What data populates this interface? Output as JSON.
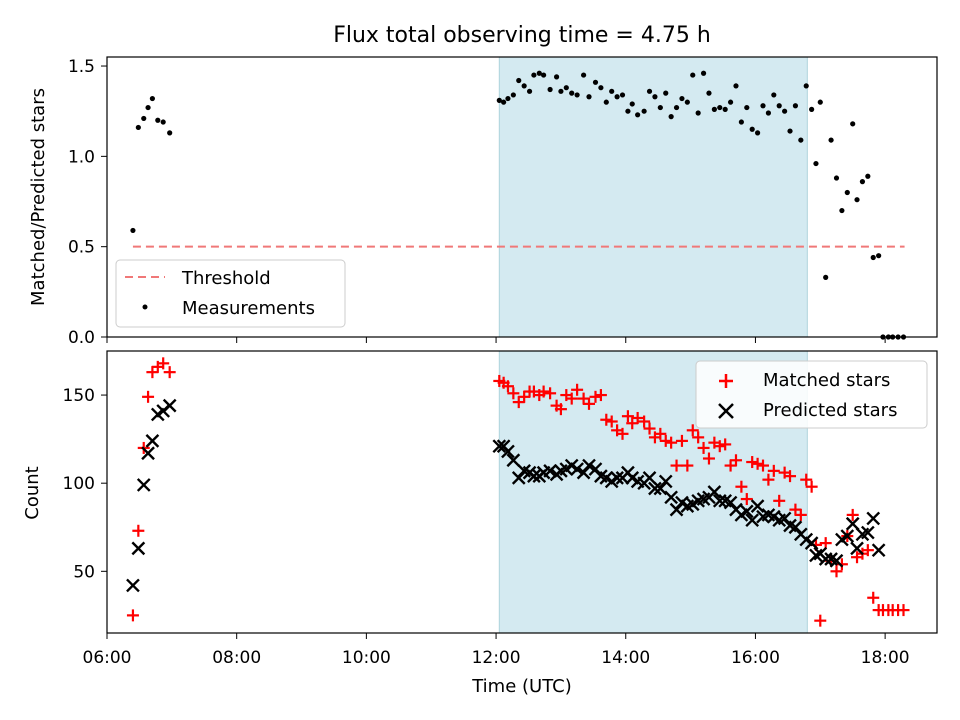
{
  "chart_data": [
    {
      "type": "scatter",
      "title": "Flux total observing time = 4.75 h",
      "ylabel": "Matched/Predicted stars",
      "xlabel": "",
      "xlim": [
        "06:00",
        "18:48"
      ],
      "ylim": [
        0,
        1.55
      ],
      "yticks": [
        "0.0",
        "0.5",
        "1.0",
        "1.5"
      ],
      "shaded_region": {
        "start": "12:03",
        "end": "16:48",
        "color": "#d4eaf1"
      },
      "threshold": {
        "name": "Threshold",
        "value": 0.5,
        "x_start": "06:24",
        "x_end": "18:18",
        "color": "#f07878"
      },
      "legend": {
        "position": "lower-left",
        "entries": [
          "Threshold",
          "Measurements"
        ]
      },
      "series": [
        {
          "name": "Measurements",
          "color": "#000000",
          "points": [
            [
              "06:24",
              0.59
            ],
            [
              "06:29",
              1.16
            ],
            [
              "06:34",
              1.21
            ],
            [
              "06:38",
              1.27
            ],
            [
              "06:42",
              1.32
            ],
            [
              "06:47",
              1.2
            ],
            [
              "06:52",
              1.19
            ],
            [
              "06:58",
              1.13
            ],
            [
              "12:03",
              1.31
            ],
            [
              "12:07",
              1.3
            ],
            [
              "12:11",
              1.32
            ],
            [
              "12:16",
              1.34
            ],
            [
              "12:21",
              1.42
            ],
            [
              "12:26",
              1.39
            ],
            [
              "12:31",
              1.36
            ],
            [
              "12:35",
              1.45
            ],
            [
              "12:40",
              1.46
            ],
            [
              "12:44",
              1.45
            ],
            [
              "12:50",
              1.37
            ],
            [
              "12:56",
              1.44
            ],
            [
              "13:00",
              1.36
            ],
            [
              "13:05",
              1.38
            ],
            [
              "13:10",
              1.35
            ],
            [
              "13:15",
              1.34
            ],
            [
              "13:21",
              1.45
            ],
            [
              "13:26",
              1.33
            ],
            [
              "13:32",
              1.41
            ],
            [
              "13:37",
              1.38
            ],
            [
              "13:42",
              1.3
            ],
            [
              "13:47",
              1.36
            ],
            [
              "13:52",
              1.33
            ],
            [
              "13:57",
              1.34
            ],
            [
              "14:02",
              1.25
            ],
            [
              "14:06",
              1.29
            ],
            [
              "14:11",
              1.23
            ],
            [
              "14:17",
              1.25
            ],
            [
              "14:22",
              1.36
            ],
            [
              "14:27",
              1.33
            ],
            [
              "14:32",
              1.27
            ],
            [
              "14:37",
              1.35
            ],
            [
              "14:42",
              1.22
            ],
            [
              "14:47",
              1.27
            ],
            [
              "14:52",
              1.32
            ],
            [
              "14:57",
              1.3
            ],
            [
              "15:02",
              1.45
            ],
            [
              "15:07",
              1.24
            ],
            [
              "15:12",
              1.46
            ],
            [
              "15:17",
              1.35
            ],
            [
              "15:22",
              1.26
            ],
            [
              "15:27",
              1.27
            ],
            [
              "15:32",
              1.26
            ],
            [
              "15:37",
              1.3
            ],
            [
              "15:42",
              1.39
            ],
            [
              "15:47",
              1.19
            ],
            [
              "15:52",
              1.27
            ],
            [
              "15:57",
              1.15
            ],
            [
              "16:02",
              1.13
            ],
            [
              "16:07",
              1.28
            ],
            [
              "16:12",
              1.24
            ],
            [
              "16:17",
              1.34
            ],
            [
              "16:22",
              1.28
            ],
            [
              "16:27",
              1.25
            ],
            [
              "16:32",
              1.14
            ],
            [
              "16:37",
              1.28
            ],
            [
              "16:42",
              1.09
            ],
            [
              "16:47",
              1.39
            ],
            [
              "16:52",
              1.26
            ],
            [
              "16:56",
              0.96
            ],
            [
              "17:00",
              1.3
            ],
            [
              "17:05",
              0.33
            ],
            [
              "17:10",
              1.09
            ],
            [
              "17:15",
              0.88
            ],
            [
              "17:20",
              0.7
            ],
            [
              "17:25",
              0.8
            ],
            [
              "17:30",
              1.18
            ],
            [
              "17:34",
              0.76
            ],
            [
              "17:39",
              0.86
            ],
            [
              "17:44",
              0.89
            ],
            [
              "17:49",
              0.44
            ],
            [
              "17:54",
              0.45
            ],
            [
              "17:58",
              0
            ],
            [
              "18:03",
              0
            ],
            [
              "18:07",
              0
            ],
            [
              "18:12",
              0
            ],
            [
              "18:17",
              0
            ]
          ]
        }
      ]
    },
    {
      "type": "scatter",
      "title": "",
      "xlabel": "Time (UTC)",
      "ylabel": "Count",
      "xlim": [
        "06:00",
        "18:48"
      ],
      "ylim": [
        15,
        175
      ],
      "yticks": [
        "50",
        "100",
        "150"
      ],
      "xticks": [
        "06:00",
        "08:00",
        "10:00",
        "12:00",
        "14:00",
        "16:00",
        "18:00"
      ],
      "shaded_region": {
        "start": "12:03",
        "end": "16:48",
        "color": "#d4eaf1"
      },
      "legend": {
        "position": "top-right",
        "entries": [
          "Matched stars",
          "Predicted stars"
        ]
      },
      "series": [
        {
          "name": "Matched stars",
          "marker": "plus",
          "color": "#ff0000",
          "points": [
            [
              "06:24",
              25
            ],
            [
              "06:29",
              73
            ],
            [
              "06:34",
              120
            ],
            [
              "06:38",
              149
            ],
            [
              "06:42",
              163
            ],
            [
              "06:47",
              166
            ],
            [
              "06:52",
              168
            ],
            [
              "06:58",
              163
            ],
            [
              "12:03",
              158
            ],
            [
              "12:07",
              157
            ],
            [
              "12:11",
              155
            ],
            [
              "12:16",
              151
            ],
            [
              "12:21",
              146
            ],
            [
              "12:26",
              149
            ],
            [
              "12:31",
              152
            ],
            [
              "12:35",
              152
            ],
            [
              "12:40",
              150
            ],
            [
              "12:44",
              152
            ],
            [
              "12:50",
              151
            ],
            [
              "12:56",
              144
            ],
            [
              "13:00",
              142
            ],
            [
              "13:05",
              150
            ],
            [
              "13:10",
              148
            ],
            [
              "13:15",
              153
            ],
            [
              "13:21",
              148
            ],
            [
              "13:26",
              145
            ],
            [
              "13:32",
              149
            ],
            [
              "13:37",
              150
            ],
            [
              "13:42",
              136
            ],
            [
              "13:47",
              135
            ],
            [
              "13:52",
              130
            ],
            [
              "13:57",
              128
            ],
            [
              "14:02",
              138
            ],
            [
              "14:06",
              134
            ],
            [
              "14:11",
              137
            ],
            [
              "14:17",
              135
            ],
            [
              "14:22",
              131
            ],
            [
              "14:27",
              126
            ],
            [
              "14:32",
              128
            ],
            [
              "14:37",
              124
            ],
            [
              "14:42",
              123
            ],
            [
              "14:47",
              110
            ],
            [
              "14:52",
              124
            ],
            [
              "14:57",
              110
            ],
            [
              "15:02",
              130
            ],
            [
              "15:07",
              126
            ],
            [
              "15:12",
              120
            ],
            [
              "15:17",
              114
            ],
            [
              "15:22",
              123
            ],
            [
              "15:27",
              121
            ],
            [
              "15:32",
              122
            ],
            [
              "15:37",
              110
            ],
            [
              "15:42",
              113
            ],
            [
              "15:47",
              98
            ],
            [
              "15:52",
              91
            ],
            [
              "15:57",
              112
            ],
            [
              "16:02",
              111
            ],
            [
              "16:07",
              110
            ],
            [
              "16:12",
              102
            ],
            [
              "16:17",
              107
            ],
            [
              "16:22",
              90
            ],
            [
              "16:27",
              106
            ],
            [
              "16:32",
              104
            ],
            [
              "16:37",
              85
            ],
            [
              "16:42",
              82
            ],
            [
              "16:47",
              102
            ],
            [
              "16:52",
              98
            ],
            [
              "16:56",
              65
            ],
            [
              "17:00",
              22
            ],
            [
              "17:05",
              66
            ],
            [
              "17:10",
              56
            ],
            [
              "17:15",
              50
            ],
            [
              "17:20",
              54
            ],
            [
              "17:25",
              70
            ],
            [
              "17:30",
              82
            ],
            [
              "17:34",
              58
            ],
            [
              "17:39",
              60
            ],
            [
              "17:44",
              62
            ],
            [
              "17:49",
              35
            ],
            [
              "17:54",
              28
            ],
            [
              "17:58",
              28
            ],
            [
              "18:03",
              28
            ],
            [
              "18:07",
              28
            ],
            [
              "18:12",
              28
            ],
            [
              "18:17",
              28
            ]
          ]
        },
        {
          "name": "Predicted stars",
          "marker": "x",
          "color": "#000000",
          "points": [
            [
              "06:24",
              42
            ],
            [
              "06:29",
              63
            ],
            [
              "06:34",
              99
            ],
            [
              "06:38",
              117
            ],
            [
              "06:42",
              124
            ],
            [
              "06:47",
              139
            ],
            [
              "06:52",
              141
            ],
            [
              "06:58",
              144
            ],
            [
              "12:03",
              121
            ],
            [
              "12:07",
              121
            ],
            [
              "12:11",
              118
            ],
            [
              "12:16",
              113
            ],
            [
              "12:21",
              103
            ],
            [
              "12:26",
              107
            ],
            [
              "12:31",
              106
            ],
            [
              "12:35",
              104
            ],
            [
              "12:40",
              104
            ],
            [
              "12:44",
              106
            ],
            [
              "12:50",
              107
            ],
            [
              "12:56",
              105
            ],
            [
              "13:00",
              107
            ],
            [
              "13:05",
              108
            ],
            [
              "13:10",
              110
            ],
            [
              "13:15",
              108
            ],
            [
              "13:21",
              106
            ],
            [
              "13:26",
              110
            ],
            [
              "13:32",
              108
            ],
            [
              "13:37",
              104
            ],
            [
              "13:42",
              103
            ],
            [
              "13:47",
              101
            ],
            [
              "13:52",
              103
            ],
            [
              "13:57",
              103
            ],
            [
              "14:02",
              106
            ],
            [
              "14:06",
              103
            ],
            [
              "14:11",
              101
            ],
            [
              "14:17",
              100
            ],
            [
              "14:22",
              103
            ],
            [
              "14:27",
              97
            ],
            [
              "14:32",
              97
            ],
            [
              "14:37",
              101
            ],
            [
              "14:42",
              92
            ],
            [
              "14:47",
              85
            ],
            [
              "14:52",
              89
            ],
            [
              "14:57",
              87
            ],
            [
              "15:02",
              88
            ],
            [
              "15:07",
              90
            ],
            [
              "15:12",
              91
            ],
            [
              "15:17",
              92
            ],
            [
              "15:22",
              95
            ],
            [
              "15:27",
              90
            ],
            [
              "15:32",
              90
            ],
            [
              "15:37",
              89
            ],
            [
              "15:42",
              85
            ],
            [
              "15:47",
              82
            ],
            [
              "15:52",
              84
            ],
            [
              "15:57",
              79
            ],
            [
              "16:02",
              87
            ],
            [
              "16:07",
              81
            ],
            [
              "16:12",
              82
            ],
            [
              "16:17",
              81
            ],
            [
              "16:22",
              79
            ],
            [
              "16:27",
              80
            ],
            [
              "16:32",
              76
            ],
            [
              "16:37",
              75
            ],
            [
              "16:42",
              71
            ],
            [
              "16:47",
              68
            ],
            [
              "16:52",
              66
            ],
            [
              "16:56",
              59
            ],
            [
              "17:00",
              60
            ],
            [
              "17:05",
              57
            ],
            [
              "17:10",
              57
            ],
            [
              "17:15",
              56
            ],
            [
              "17:20",
              68
            ],
            [
              "17:25",
              70
            ],
            [
              "17:30",
              77
            ],
            [
              "17:34",
              63
            ],
            [
              "17:39",
              71
            ],
            [
              "17:44",
              72
            ],
            [
              "17:49",
              80
            ],
            [
              "17:54",
              62
            ]
          ]
        }
      ]
    }
  ]
}
